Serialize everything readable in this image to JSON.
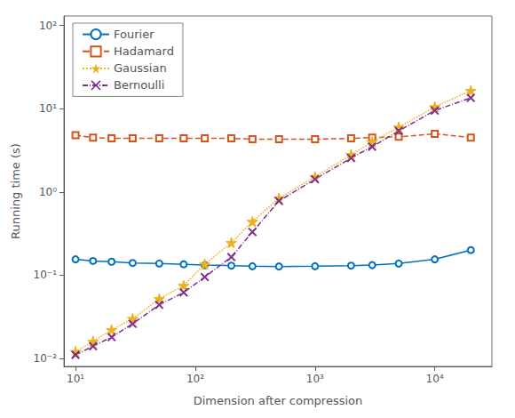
{
  "chart_data": {
    "type": "line",
    "xlabel": "Dimension after compression",
    "ylabel": "Running time (s)",
    "x": [
      10,
      14,
      20,
      30,
      50,
      80,
      120,
      200,
      300,
      500,
      1000,
      2000,
      3000,
      5000,
      10000,
      20000
    ],
    "series": [
      {
        "name": "Fourier",
        "color": "#0072bd",
        "marker": "open circle",
        "line_style": "solid",
        "values": [
          0.155,
          0.148,
          0.145,
          0.14,
          0.138,
          0.135,
          0.132,
          0.13,
          0.128,
          0.127,
          0.128,
          0.13,
          0.132,
          0.138,
          0.155,
          0.2
        ]
      },
      {
        "name": "Hadamard",
        "color": "#d95319",
        "marker": "open square",
        "line_style": "dashed",
        "values": [
          4.8,
          4.5,
          4.4,
          4.4,
          4.4,
          4.4,
          4.4,
          4.4,
          4.3,
          4.3,
          4.3,
          4.4,
          4.5,
          4.6,
          5.0,
          4.5
        ]
      },
      {
        "name": "Gaussian",
        "color": "#edb120",
        "marker": "star",
        "line_style": "dotted",
        "values": [
          0.012,
          0.016,
          0.022,
          0.03,
          0.052,
          0.075,
          0.135,
          0.245,
          0.44,
          0.84,
          1.52,
          2.8,
          4.0,
          6.0,
          10.5,
          16.5
        ]
      },
      {
        "name": "Bernoulli",
        "color": "#7e2f8e",
        "marker": "x",
        "line_style": "dashdot",
        "values": [
          0.011,
          0.014,
          0.018,
          0.026,
          0.044,
          0.062,
          0.095,
          0.165,
          0.33,
          0.78,
          1.42,
          2.55,
          3.5,
          5.4,
          9.5,
          13.5
        ]
      }
    ],
    "xlim": [
      8,
      30000
    ],
    "ylim": [
      0.008,
      130
    ],
    "xticks": [
      {
        "value": 10,
        "label": "10¹"
      },
      {
        "value": 100,
        "label": "10²"
      },
      {
        "value": 1000,
        "label": "10³"
      },
      {
        "value": 10000,
        "label": "10⁴"
      }
    ],
    "yticks": [
      {
        "value": 0.01,
        "label": "10⁻²"
      },
      {
        "value": 0.1,
        "label": "10⁻¹"
      },
      {
        "value": 1,
        "label": "10⁰"
      },
      {
        "value": 10,
        "label": "10¹"
      },
      {
        "value": 100,
        "label": "10²"
      }
    ],
    "log": true,
    "grid": false,
    "legend": "upper left"
  }
}
